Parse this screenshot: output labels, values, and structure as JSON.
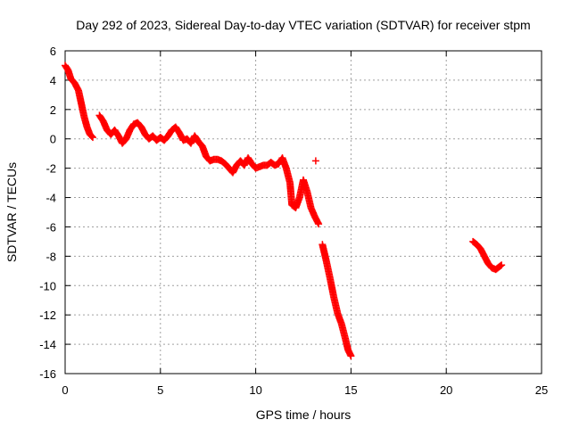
{
  "chart_data": {
    "type": "scatter",
    "title": "Day 292 of 2023, Sidereal Day-to-day VTEC variation (SDTVAR) for receiver stpm",
    "xlabel": "GPS time / hours",
    "ylabel": "SDTVAR / TECUs",
    "xlim": [
      0,
      25
    ],
    "ylim": [
      -16,
      6
    ],
    "xticks": [
      0,
      5,
      10,
      15,
      20,
      25
    ],
    "yticks": [
      -16,
      -14,
      -12,
      -10,
      -8,
      -6,
      -4,
      -2,
      0,
      2,
      4,
      6
    ],
    "grid": true,
    "marker": "+",
    "marker_color": "#ff0000",
    "series": [
      {
        "name": "SDTVAR",
        "points": [
          [
            0.0,
            5.0
          ],
          [
            0.15,
            4.7
          ],
          [
            0.3,
            4.1
          ],
          [
            0.5,
            3.8
          ],
          [
            0.7,
            3.3
          ],
          [
            0.85,
            2.4
          ],
          [
            1.0,
            1.5
          ],
          [
            1.15,
            0.8
          ],
          [
            1.3,
            0.3
          ],
          [
            1.45,
            0.1
          ],
          [
            1.8,
            1.6
          ],
          [
            2.0,
            1.2
          ],
          [
            2.2,
            0.6
          ],
          [
            2.4,
            0.3
          ],
          [
            2.6,
            0.6
          ],
          [
            2.8,
            0.2
          ],
          [
            3.0,
            -0.3
          ],
          [
            3.2,
            0.0
          ],
          [
            3.4,
            0.6
          ],
          [
            3.6,
            1.0
          ],
          [
            3.8,
            1.1
          ],
          [
            4.0,
            0.8
          ],
          [
            4.2,
            0.3
          ],
          [
            4.4,
            0.0
          ],
          [
            4.6,
            0.2
          ],
          [
            4.8,
            -0.1
          ],
          [
            5.0,
            0.1
          ],
          [
            5.2,
            -0.1
          ],
          [
            5.4,
            0.2
          ],
          [
            5.6,
            0.6
          ],
          [
            5.8,
            0.8
          ],
          [
            6.0,
            0.4
          ],
          [
            6.2,
            -0.1
          ],
          [
            6.4,
            0.0
          ],
          [
            6.6,
            -0.3
          ],
          [
            6.8,
            0.2
          ],
          [
            7.0,
            -0.2
          ],
          [
            7.2,
            -0.5
          ],
          [
            7.4,
            -1.2
          ],
          [
            7.6,
            -1.5
          ],
          [
            7.8,
            -1.4
          ],
          [
            8.0,
            -1.4
          ],
          [
            8.2,
            -1.5
          ],
          [
            8.4,
            -1.7
          ],
          [
            8.6,
            -2.0
          ],
          [
            8.8,
            -2.3
          ],
          [
            9.0,
            -1.8
          ],
          [
            9.2,
            -1.5
          ],
          [
            9.4,
            -1.8
          ],
          [
            9.6,
            -1.3
          ],
          [
            9.8,
            -1.7
          ],
          [
            10.0,
            -2.0
          ],
          [
            10.2,
            -1.9
          ],
          [
            10.4,
            -1.8
          ],
          [
            10.6,
            -1.8
          ],
          [
            10.8,
            -1.6
          ],
          [
            11.0,
            -1.8
          ],
          [
            11.2,
            -1.7
          ],
          [
            11.4,
            -1.3
          ],
          [
            11.6,
            -2.0
          ],
          [
            11.8,
            -3.0
          ],
          [
            11.9,
            -4.5
          ],
          [
            12.1,
            -4.7
          ],
          [
            12.3,
            -4.0
          ],
          [
            12.5,
            -2.8
          ],
          [
            12.7,
            -3.6
          ],
          [
            12.9,
            -4.7
          ],
          [
            13.1,
            -5.3
          ],
          [
            13.3,
            -5.8
          ],
          [
            13.15,
            -1.5
          ],
          [
            13.5,
            -7.2
          ],
          [
            13.7,
            -8.3
          ],
          [
            13.9,
            -9.5
          ],
          [
            14.1,
            -10.8
          ],
          [
            14.3,
            -11.9
          ],
          [
            14.5,
            -12.6
          ],
          [
            14.7,
            -13.6
          ],
          [
            14.85,
            -14.4
          ],
          [
            15.0,
            -14.8
          ],
          [
            21.4,
            -7.0
          ],
          [
            21.6,
            -7.2
          ],
          [
            21.8,
            -7.5
          ],
          [
            22.0,
            -8.0
          ],
          [
            22.2,
            -8.5
          ],
          [
            22.4,
            -8.8
          ],
          [
            22.6,
            -8.9
          ],
          [
            22.8,
            -8.7
          ],
          [
            22.9,
            -8.6
          ]
        ]
      }
    ]
  }
}
